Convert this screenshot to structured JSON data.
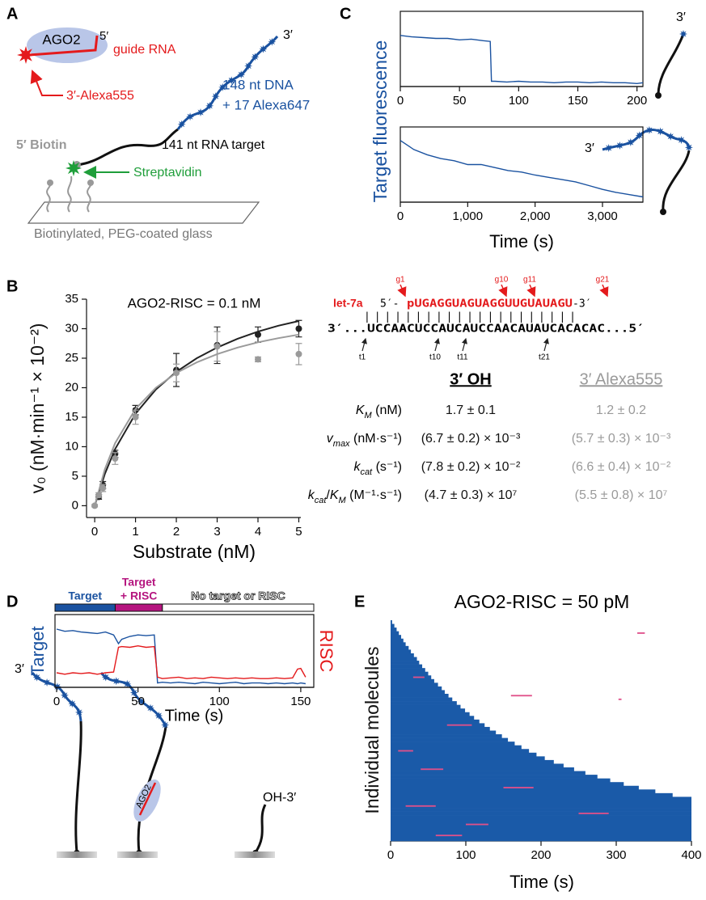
{
  "panels": [
    "A",
    "B",
    "C",
    "D",
    "E"
  ],
  "diagram_a": {
    "ago2": "AGO2",
    "five_prime": "5′",
    "guide": "guide RNA",
    "alexa555": "3′-Alexa555",
    "three_prime": "3′",
    "dna": "148 nt DNA",
    "alexa647": "+ 17 Alexa647",
    "biotin": "5′ Biotin",
    "target": "141 nt RNA target",
    "streptavidin": "Streptavidin",
    "glass": "Biotinylated, PEG-coated glass"
  },
  "diagram_c": {
    "top_end": "3′",
    "bottom_end": "3′"
  },
  "diagram_d": {
    "end": "3′",
    "protein": "AGO2",
    "free_end": "OH-3′"
  },
  "sequence": {
    "mirna": "let-7a",
    "guide_5": "5′-",
    "guide": "pUGAGGUAGUAGGUUGUAUAGU",
    "guide_3": "-3′",
    "pairs": "|||||||||||||||||||||",
    "target": "3′...UCCAACUCCAUCAUCCAACAUAUCACACAC...5′",
    "guide_labels": [
      "g1",
      "g10",
      "g11",
      "g21"
    ],
    "target_labels": [
      "t1",
      "t10",
      "t11",
      "t21"
    ]
  },
  "kinetics": {
    "headers": [
      "3′ OH",
      "3′ Alexa555"
    ],
    "rows": [
      {
        "label": [
          {
            "text": "K",
            "style": "italic"
          },
          {
            "text": "M",
            "style": "sub"
          },
          {
            "text": " (nM)",
            "style": "plain"
          }
        ],
        "values": [
          "1.7 ± 0.1",
          "1.2 ± 0.2"
        ]
      },
      {
        "label": [
          {
            "text": "v",
            "style": "italic"
          },
          {
            "text": "max",
            "style": "sub"
          },
          {
            "text": " (nM·s⁻¹)",
            "style": "plain"
          }
        ],
        "values": [
          "(6.7 ± 0.2) × 10⁻³",
          "(5.7 ± 0.3) × 10⁻³"
        ]
      },
      {
        "label": [
          {
            "text": "k",
            "style": "italic"
          },
          {
            "text": "cat",
            "style": "sub"
          },
          {
            "text": " (s⁻¹)",
            "style": "plain"
          }
        ],
        "values": [
          "(7.8 ± 0.2) × 10⁻²",
          "(6.6 ± 0.4) × 10⁻²"
        ]
      },
      {
        "label": [
          {
            "text": "k",
            "style": "italic"
          },
          {
            "text": "cat",
            "style": "sub"
          },
          {
            "text": "/",
            "style": "plain"
          },
          {
            "text": "K",
            "style": "italic"
          },
          {
            "text": "M",
            "style": "sub"
          },
          {
            "text": " (M⁻¹·s⁻¹)",
            "style": "plain"
          }
        ],
        "values": [
          "(4.7 ± 0.3) × 10⁷",
          "(5.5 ± 0.8) × 10⁷"
        ]
      }
    ]
  },
  "chart_data": [
    {
      "type": "scatter",
      "title": "AGO2-RISC = 0.1 nM",
      "xlabel": "Substrate (nM)",
      "ylabel": "v₀ (nM·min⁻¹ × 10⁻²)",
      "xlim": [
        -0.2,
        5.05
      ],
      "xticks": [
        0,
        1,
        2,
        3,
        4,
        5
      ],
      "ylim": [
        -2,
        35
      ],
      "yticks": [
        0,
        5,
        10,
        15,
        20,
        25,
        30,
        35
      ],
      "fit_x": [
        0,
        0.25,
        0.5,
        1,
        1.5,
        2,
        2.5,
        3,
        3.5,
        4,
        4.5,
        5
      ],
      "series": [
        {
          "color": "#222222",
          "x": [
            0.1,
            0.2,
            0.5,
            1,
            2,
            3,
            4,
            5
          ],
          "values": [
            1.5,
            3.5,
            8.8,
            16.2,
            23,
            27.2,
            29,
            30
          ],
          "errors": [
            0.4,
            0.6,
            0.6,
            0.8,
            2.8,
            3.1,
            1.3,
            1.4
          ],
          "fit": [
            0,
            5.4,
            9.6,
            15.6,
            19.7,
            22.7,
            25,
            26.8,
            28.3,
            29.5,
            30.5,
            31.3
          ]
        },
        {
          "color": "#9a9a9a",
          "x": [
            0,
            0.1,
            0.2,
            0.5,
            1,
            2,
            3,
            4,
            5
          ],
          "values": [
            0,
            1.8,
            3,
            8,
            15,
            22.5,
            27,
            24.8,
            25.7
          ],
          "errors": [
            0.2,
            0.4,
            0.6,
            1,
            1.2,
            1.5,
            2.5,
            0.4,
            1.8
          ],
          "fit": [
            0,
            6.2,
            10.6,
            16.4,
            20,
            22.5,
            24.3,
            25.7,
            26.8,
            27.7,
            28.4,
            29
          ]
        }
      ]
    },
    {
      "type": "line",
      "ylabel": "Target fluorescence",
      "xlim": [
        0,
        205
      ],
      "xticks": [
        0,
        50,
        100,
        150,
        200
      ],
      "ylim": [
        0,
        1
      ],
      "series": [
        {
          "color": "#1a52a0",
          "x": [
            0,
            10,
            20,
            30,
            40,
            50,
            60,
            70,
            76,
            77,
            80,
            90,
            100,
            110,
            120,
            130,
            140,
            150,
            160,
            170,
            180,
            190,
            200,
            205
          ],
          "values": [
            0.68,
            0.66,
            0.65,
            0.64,
            0.64,
            0.62,
            0.63,
            0.61,
            0.6,
            0.07,
            0.07,
            0.06,
            0.07,
            0.06,
            0.06,
            0.05,
            0.06,
            0.06,
            0.05,
            0.06,
            0.05,
            0.05,
            0.04,
            0.05
          ]
        }
      ]
    },
    {
      "type": "line",
      "xlabel": "Time (s)",
      "xlim": [
        0,
        3600
      ],
      "xticks": [
        0,
        {
          "value": 1000,
          "label": "1,000"
        },
        {
          "value": 2000,
          "label": "2,000"
        },
        {
          "value": 3000,
          "label": "3,000"
        }
      ],
      "ylim": [
        0,
        1
      ],
      "series": [
        {
          "color": "#1a52a0",
          "x": [
            0,
            200,
            400,
            600,
            800,
            1000,
            1200,
            1400,
            1600,
            1800,
            2000,
            2200,
            2400,
            2600,
            2800,
            3000,
            3200,
            3400,
            3600
          ],
          "values": [
            0.82,
            0.7,
            0.63,
            0.58,
            0.55,
            0.5,
            0.5,
            0.46,
            0.42,
            0.4,
            0.36,
            0.33,
            0.3,
            0.27,
            0.22,
            0.17,
            0.13,
            0.1,
            0.07
          ]
        }
      ]
    },
    {
      "type": "line",
      "xlabel": "Time (s)",
      "xlim": [
        -1,
        158
      ],
      "xticks": [
        0,
        50,
        100,
        150
      ],
      "ylim": [
        0,
        1
      ],
      "phases": [
        {
          "label": [
            "Target"
          ],
          "start": -1,
          "end": 36,
          "color": "#1a52a0",
          "label_color": "#1a52a0"
        },
        {
          "label": [
            "Target",
            "+ RISC"
          ],
          "start": 36,
          "end": 65,
          "color": "#b5157f",
          "label_color": "#b5157f"
        },
        {
          "label": [
            "No target or RISC"
          ],
          "start": 65,
          "end": 158,
          "color": "#ffffff",
          "label_color": "#ffffff"
        }
      ],
      "series": [
        {
          "name": "Target",
          "color": "#1a52a0",
          "x": [
            0,
            5,
            10,
            15,
            20,
            25,
            30,
            35,
            38,
            40,
            45,
            50,
            55,
            60,
            62,
            65,
            70,
            75,
            80,
            85,
            90,
            95,
            100,
            105,
            110,
            115,
            120,
            125,
            130,
            135,
            140,
            145,
            148,
            150,
            153
          ],
          "values": [
            0.8,
            0.77,
            0.78,
            0.76,
            0.75,
            0.74,
            0.76,
            0.72,
            0.6,
            0.66,
            0.7,
            0.72,
            0.71,
            0.72,
            0.06,
            0.07,
            0.06,
            0.07,
            0.06,
            0.05,
            0.07,
            0.06,
            0.05,
            0.06,
            0.07,
            0.05,
            0.06,
            0.06,
            0.05,
            0.06,
            0.05,
            0.06,
            0.05,
            0.06,
            0.05
          ]
        },
        {
          "name": "RISC",
          "color": "#e41a1c",
          "x": [
            0,
            5,
            10,
            15,
            20,
            25,
            30,
            35,
            38,
            40,
            45,
            50,
            55,
            60,
            62,
            65,
            70,
            75,
            80,
            85,
            90,
            95,
            100,
            105,
            110,
            115,
            120,
            125,
            130,
            135,
            140,
            145,
            148,
            150,
            153
          ],
          "values": [
            0.2,
            0.18,
            0.2,
            0.19,
            0.2,
            0.18,
            0.2,
            0.21,
            0.55,
            0.56,
            0.55,
            0.57,
            0.55,
            0.56,
            0.14,
            0.12,
            0.13,
            0.14,
            0.12,
            0.13,
            0.12,
            0.14,
            0.13,
            0.12,
            0.13,
            0.12,
            0.13,
            0.12,
            0.12,
            0.13,
            0.12,
            0.13,
            0.25,
            0.26,
            0.14
          ]
        }
      ]
    },
    {
      "type": "raster",
      "title": "AGO2-RISC = 50 pM",
      "xlabel": "Time (s)",
      "ylabel": "Individual molecules",
      "xlim": [
        0,
        400
      ],
      "xticks": [
        0,
        100,
        200,
        300,
        400
      ],
      "color": "#1a5aa8",
      "event_color": "#e0508a",
      "values": [
        2,
        5,
        8,
        11,
        14,
        17,
        20,
        24,
        27,
        31,
        35,
        38,
        42,
        46,
        50,
        54,
        58,
        63,
        68,
        72,
        77,
        82,
        88,
        93,
        99,
        105,
        111,
        118,
        125,
        132,
        140,
        148,
        156,
        165,
        174,
        184,
        194,
        205,
        217,
        230,
        244,
        259,
        275,
        292,
        310,
        330,
        352,
        375,
        400,
        400,
        400,
        400,
        400,
        400,
        400,
        400,
        400,
        400,
        400,
        400
      ],
      "events": [
        {
          "molecule": 3,
          "start": 328,
          "end": 338
        },
        {
          "molecule": 20,
          "start": 160,
          "end": 188
        },
        {
          "molecule": 28,
          "start": 75,
          "end": 108
        },
        {
          "molecule": 21,
          "start": 303,
          "end": 307
        },
        {
          "molecule": 40,
          "start": 40,
          "end": 70
        },
        {
          "molecule": 50,
          "start": 20,
          "end": 60
        },
        {
          "molecule": 55,
          "start": 100,
          "end": 130
        },
        {
          "molecule": 45,
          "start": 150,
          "end": 190
        },
        {
          "molecule": 52,
          "start": 250,
          "end": 290
        },
        {
          "molecule": 58,
          "start": 60,
          "end": 95
        },
        {
          "molecule": 35,
          "start": 10,
          "end": 30
        },
        {
          "molecule": 15,
          "start": 30,
          "end": 45
        }
      ]
    }
  ]
}
